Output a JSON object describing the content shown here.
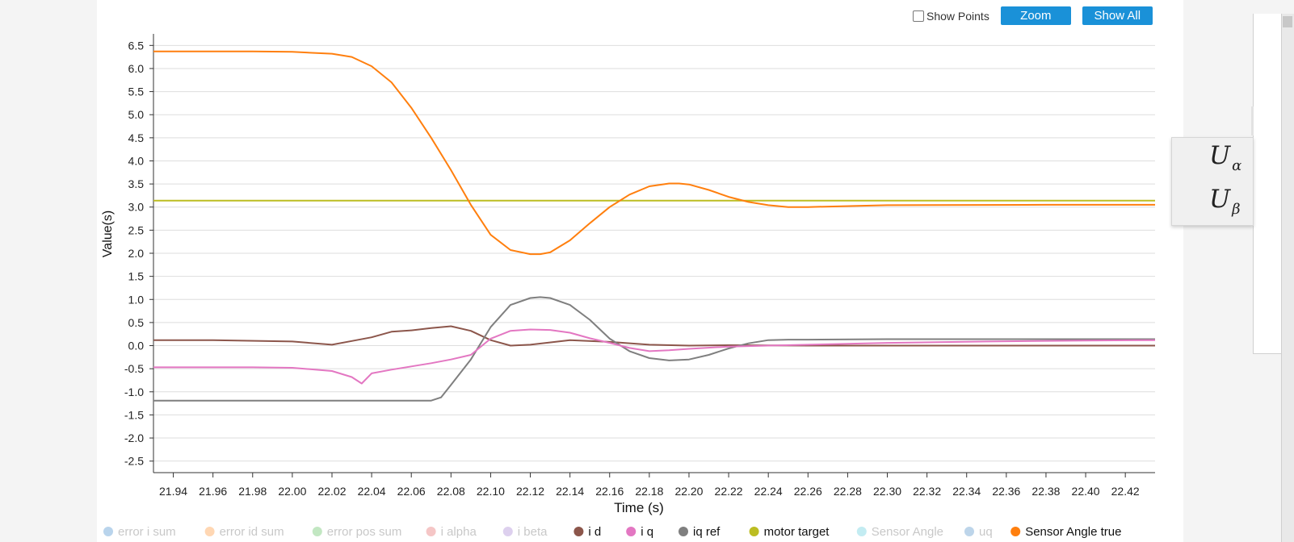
{
  "toolbar": {
    "show_points_label": "Show Points",
    "zoom_label": "Zoom",
    "show_all_label": "Show All"
  },
  "side_panel": {
    "rows": [
      {
        "symbol": "U",
        "subscript": "α"
      },
      {
        "symbol": "U",
        "subscript": "β"
      }
    ]
  },
  "chart_data": {
    "type": "line",
    "xlabel": "Time (s)",
    "ylabel": "Value(s)",
    "xlim": [
      21.93,
      22.435
    ],
    "ylim": [
      -2.75,
      6.75
    ],
    "x_ticks": [
      "21.94",
      "21.96",
      "21.98",
      "22.00",
      "22.02",
      "22.04",
      "22.06",
      "22.08",
      "22.10",
      "22.12",
      "22.14",
      "22.16",
      "22.18",
      "22.20",
      "22.22",
      "22.24",
      "22.26",
      "22.28",
      "22.30",
      "22.32",
      "22.34",
      "22.36",
      "22.38",
      "22.40",
      "22.42"
    ],
    "y_ticks": [
      "6.5",
      "6.0",
      "5.5",
      "5.0",
      "4.5",
      "4.0",
      "3.5",
      "3.0",
      "2.5",
      "2.0",
      "1.5",
      "1.0",
      "0.5",
      "0.0",
      "-0.5",
      "-1.0",
      "-1.5",
      "-2.0",
      "-2.5"
    ],
    "grid": true,
    "legend_position": "bottom",
    "legend": [
      {
        "name": "error i sum",
        "color": "#b9d4ec",
        "active": false
      },
      {
        "name": "error id sum",
        "color": "#ffd7b3",
        "active": false
      },
      {
        "name": "error pos sum",
        "color": "#c2e7c2",
        "active": false
      },
      {
        "name": "i alpha",
        "color": "#f5c6c6",
        "active": false
      },
      {
        "name": "i beta",
        "color": "#ddd0ee",
        "active": false
      },
      {
        "name": "i d",
        "color": "#8c564b",
        "active": true
      },
      {
        "name": "i q",
        "color": "#e377c2",
        "active": true
      },
      {
        "name": "iq ref",
        "color": "#7f7f7f",
        "active": true
      },
      {
        "name": "motor target",
        "color": "#bcbd22",
        "active": true
      },
      {
        "name": "Sensor Angle",
        "color": "#c3ecf2",
        "active": false
      },
      {
        "name": "uq",
        "color": "#bdd5ea",
        "active": false
      },
      {
        "name": "Sensor Angle true",
        "color": "#ff7f0e",
        "active": true
      }
    ],
    "series": [
      {
        "name": "Sensor Angle true",
        "color": "#ff7f0e",
        "x": [
          21.93,
          21.98,
          22.0,
          22.02,
          22.03,
          22.04,
          22.05,
          22.06,
          22.07,
          22.08,
          22.09,
          22.1,
          22.11,
          22.12,
          22.125,
          22.13,
          22.14,
          22.15,
          22.16,
          22.17,
          22.18,
          22.19,
          22.195,
          22.2,
          22.21,
          22.22,
          22.23,
          22.24,
          22.25,
          22.26,
          22.3,
          22.38,
          22.435
        ],
        "y": [
          6.37,
          6.37,
          6.36,
          6.32,
          6.25,
          6.05,
          5.7,
          5.15,
          4.5,
          3.8,
          3.05,
          2.4,
          2.07,
          1.98,
          1.98,
          2.02,
          2.28,
          2.65,
          3.0,
          3.27,
          3.45,
          3.51,
          3.51,
          3.49,
          3.37,
          3.22,
          3.11,
          3.04,
          3.0,
          3.0,
          3.04,
          3.05,
          3.05
        ]
      },
      {
        "name": "motor target",
        "color": "#bcbd22",
        "x": [
          21.93,
          22.435
        ],
        "y": [
          3.14,
          3.14
        ]
      },
      {
        "name": "iq ref",
        "color": "#7f7f7f",
        "x": [
          21.93,
          22.07,
          22.075,
          22.08,
          22.09,
          22.1,
          22.11,
          22.12,
          22.125,
          22.13,
          22.14,
          22.15,
          22.16,
          22.17,
          22.18,
          22.19,
          22.2,
          22.21,
          22.22,
          22.23,
          22.24,
          22.25,
          22.26,
          22.3,
          22.435
        ],
        "y": [
          -1.19,
          -1.19,
          -1.12,
          -0.85,
          -0.3,
          0.4,
          0.88,
          1.03,
          1.05,
          1.03,
          0.88,
          0.56,
          0.15,
          -0.12,
          -0.27,
          -0.32,
          -0.3,
          -0.2,
          -0.06,
          0.05,
          0.12,
          0.13,
          0.13,
          0.14,
          0.14
        ]
      },
      {
        "name": "i q",
        "color": "#e377c2",
        "x": [
          21.93,
          21.98,
          22.0,
          22.02,
          22.03,
          22.035,
          22.04,
          22.05,
          22.06,
          22.07,
          22.08,
          22.09,
          22.1,
          22.11,
          22.12,
          22.13,
          22.14,
          22.15,
          22.16,
          22.17,
          22.18,
          22.19,
          22.2,
          22.22,
          22.24,
          22.26,
          22.3,
          22.35,
          22.4,
          22.435
        ],
        "y": [
          -0.47,
          -0.47,
          -0.48,
          -0.55,
          -0.68,
          -0.82,
          -0.6,
          -0.52,
          -0.45,
          -0.38,
          -0.3,
          -0.2,
          0.15,
          0.32,
          0.35,
          0.34,
          0.28,
          0.16,
          0.06,
          -0.05,
          -0.12,
          -0.1,
          -0.07,
          -0.02,
          0.0,
          0.02,
          0.06,
          0.09,
          0.11,
          0.12
        ]
      },
      {
        "name": "i d",
        "color": "#8c564b",
        "x": [
          21.93,
          21.96,
          22.0,
          22.02,
          22.03,
          22.04,
          22.05,
          22.06,
          22.07,
          22.08,
          22.09,
          22.1,
          22.11,
          22.12,
          22.14,
          22.16,
          22.18,
          22.2,
          22.22,
          22.26,
          22.3,
          22.36,
          22.435
        ],
        "y": [
          0.12,
          0.12,
          0.09,
          0.02,
          0.1,
          0.18,
          0.3,
          0.33,
          0.38,
          0.42,
          0.32,
          0.12,
          0.0,
          0.02,
          0.12,
          0.08,
          0.02,
          0.0,
          0.01,
          0.0,
          0.0,
          0.0,
          0.0
        ]
      }
    ]
  }
}
